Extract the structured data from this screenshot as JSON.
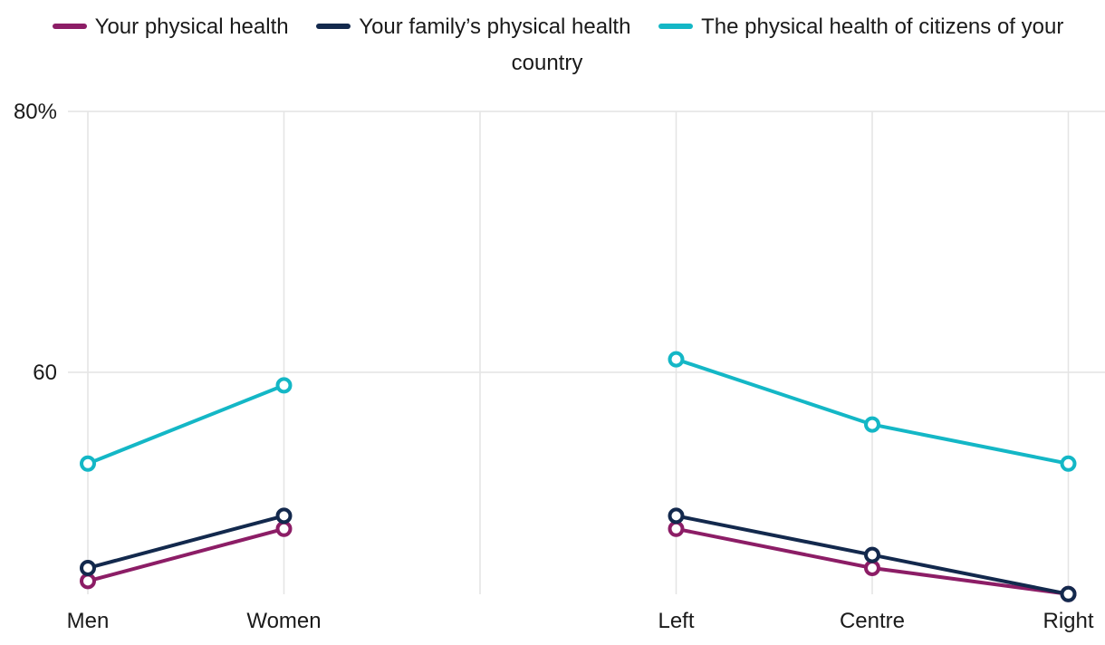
{
  "chart_data": {
    "type": "line",
    "categories": [
      "Men",
      "Women",
      "",
      "Left",
      "Centre",
      "Right"
    ],
    "series": [
      {
        "name": "Your physical health",
        "color": "#8c1d66",
        "values": [
          44,
          48,
          null,
          48,
          45,
          43
        ]
      },
      {
        "name": "Your family’s physical health",
        "color": "#13294d",
        "values": [
          45,
          49,
          null,
          49,
          46,
          43
        ]
      },
      {
        "name": "The physical health of citizens of your country",
        "color": "#14b7c6",
        "values": [
          53,
          59,
          null,
          61,
          56,
          53
        ]
      }
    ],
    "y_axis": {
      "unit": "%",
      "top_value": 80,
      "ticks": [
        {
          "value": 80,
          "label": "80%"
        },
        {
          "value": 60,
          "label": "60"
        }
      ]
    },
    "legend_position": "top",
    "grid": {
      "horizontal": true,
      "vertical": true
    },
    "colors": {
      "grid": "#e4e4e4",
      "text": "#1a1a1a",
      "background": "#ffffff",
      "point_fill": "#ffffff"
    }
  }
}
